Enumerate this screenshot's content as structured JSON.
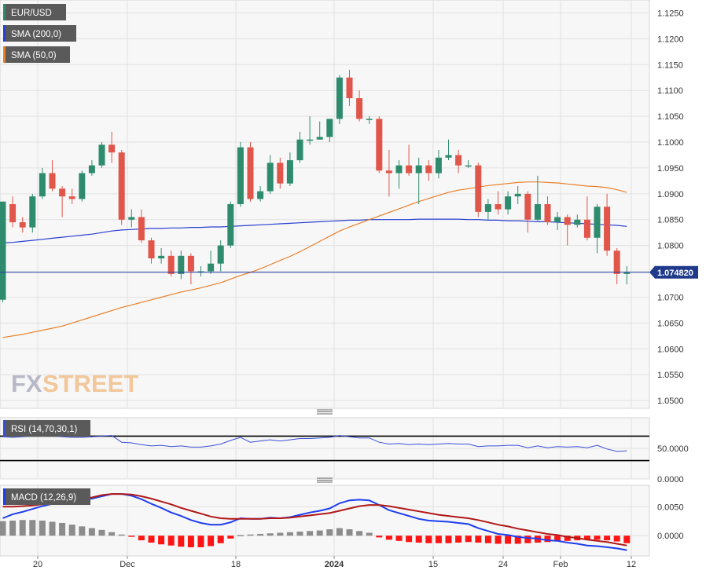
{
  "legend": {
    "symbol": "EUR/USD",
    "sma200": "SMA (200,0)",
    "sma50": "SMA (50,0)",
    "rsi": "RSI (14,70,30,1)",
    "macd": "MACD (12,26,9)"
  },
  "watermark": {
    "fx": "FX",
    "street": "STREET"
  },
  "price_badge": "1.074820",
  "colors": {
    "up": "#2e8b6e",
    "down": "#e0564a",
    "sma200": "#2a3fd0",
    "sma50": "#e8802a",
    "rsi_line": "#3a4fd8",
    "macd_line": "#1e3ef0",
    "signal_line": "#b01818",
    "hist_pos": "#8c8c8c",
    "hist_neg": "#ff1414",
    "badge_bg": "#1f3a8a",
    "legend_bg": "#5a5a5a"
  },
  "chart_data": [
    {
      "type": "candlestick",
      "title": "EUR/USD",
      "x_ticks": [
        "20",
        "Dec",
        "18",
        "2024",
        "15",
        "24",
        "Feb",
        "12"
      ],
      "y_ticks": [
        "1.1250",
        "1.1200",
        "1.1150",
        "1.1100",
        "1.1050",
        "1.1000",
        "1.0950",
        "1.0900",
        "1.0850",
        "1.0800",
        "1.0750",
        "1.0700",
        "1.0650",
        "1.0600",
        "1.0550",
        "1.0500"
      ],
      "ylim": [
        1.0485,
        1.1275
      ],
      "last_price": 1.07482,
      "candles": [
        [
          1.0695,
          1.0885,
          1.069,
          1.0885
        ],
        [
          1.088,
          1.0845,
          1.0895,
          1.0835
        ],
        [
          1.0845,
          1.0835,
          1.0855,
          1.0825
        ],
        [
          1.0835,
          1.0895,
          1.09,
          1.0825
        ],
        [
          1.0895,
          1.094,
          1.095,
          1.089
        ],
        [
          1.094,
          1.091,
          1.0965,
          1.0905
        ],
        [
          1.091,
          1.0895,
          1.0915,
          1.0855
        ],
        [
          1.0895,
          1.089,
          1.091,
          1.088
        ],
        [
          1.089,
          1.094,
          1.0945,
          1.0885
        ],
        [
          1.094,
          1.0955,
          1.0965,
          1.0935
        ],
        [
          1.0955,
          1.0995,
          1.1,
          1.095
        ],
        [
          1.0995,
          1.098,
          1.102,
          1.096
        ],
        [
          1.098,
          1.085,
          1.0985,
          1.084
        ],
        [
          1.085,
          1.0855,
          1.087,
          1.0835
        ],
        [
          1.0855,
          1.081,
          1.087,
          1.0805
        ],
        [
          1.081,
          1.0775,
          1.0815,
          1.0765
        ],
        [
          1.0775,
          1.078,
          1.0795,
          1.0765
        ],
        [
          1.078,
          1.0745,
          1.079,
          1.074
        ],
        [
          1.0745,
          1.078,
          1.079,
          1.0735
        ],
        [
          1.078,
          1.075,
          1.0785,
          1.0725
        ],
        [
          1.075,
          1.075,
          1.076,
          1.074
        ],
        [
          1.075,
          1.0765,
          1.079,
          1.0745
        ],
        [
          1.0765,
          1.08,
          1.081,
          1.075
        ],
        [
          1.08,
          1.088,
          1.0885,
          1.0795
        ],
        [
          1.088,
          1.099,
          1.1,
          1.0875
        ],
        [
          1.099,
          1.089,
          1.1,
          1.0885
        ],
        [
          1.089,
          1.0905,
          1.0915,
          1.0885
        ],
        [
          1.0905,
          1.096,
          1.0975,
          1.09
        ],
        [
          1.096,
          1.092,
          1.097,
          1.091
        ],
        [
          1.092,
          1.0965,
          1.098,
          1.0915
        ],
        [
          1.0965,
          1.1005,
          1.102,
          1.096
        ],
        [
          1.1005,
          1.1005,
          1.105,
          1.0995
        ],
        [
          1.1005,
          1.101,
          1.104,
          1.1005
        ],
        [
          1.101,
          1.1045,
          1.1045,
          1.1
        ],
        [
          1.1045,
          1.1125,
          1.113,
          1.1035
        ],
        [
          1.1125,
          1.1085,
          1.114,
          1.107
        ],
        [
          1.1085,
          1.1045,
          1.11,
          1.104
        ],
        [
          1.1045,
          1.1045,
          1.105,
          1.1035
        ],
        [
          1.1045,
          1.0945,
          1.105,
          1.094
        ],
        [
          1.0945,
          1.094,
          1.0985,
          1.0895
        ],
        [
          1.094,
          1.0955,
          1.0965,
          1.091
        ],
        [
          1.0955,
          1.094,
          1.0995,
          1.0935
        ],
        [
          1.094,
          1.0955,
          1.097,
          1.088
        ],
        [
          1.0955,
          1.094,
          1.0965,
          1.0925
        ],
        [
          1.094,
          1.097,
          1.0985,
          1.093
        ],
        [
          1.097,
          1.0975,
          1.1005,
          1.0965
        ],
        [
          1.0975,
          1.0955,
          1.0985,
          1.094
        ],
        [
          1.0955,
          1.0955,
          1.0965,
          1.095
        ],
        [
          1.0955,
          1.0865,
          1.096,
          1.0855
        ],
        [
          1.0865,
          1.088,
          1.089,
          1.085
        ],
        [
          1.088,
          1.087,
          1.0905,
          1.086
        ],
        [
          1.087,
          1.0895,
          1.0905,
          1.086
        ],
        [
          1.0895,
          1.09,
          1.0915,
          1.088
        ],
        [
          1.09,
          1.085,
          1.0905,
          1.0825
        ],
        [
          1.085,
          1.088,
          1.0935,
          1.0845
        ],
        [
          1.088,
          1.0845,
          1.0895,
          1.084
        ],
        [
          1.0845,
          1.0855,
          1.0865,
          1.083
        ],
        [
          1.0855,
          1.084,
          1.086,
          1.08
        ],
        [
          1.084,
          1.085,
          1.086,
          1.0835
        ],
        [
          1.085,
          1.0815,
          1.0895,
          1.081
        ],
        [
          1.0815,
          1.0875,
          1.088,
          1.0785
        ],
        [
          1.0875,
          1.079,
          1.09,
          1.078
        ],
        [
          1.079,
          1.0745,
          1.0795,
          1.0725
        ],
        [
          1.0745,
          1.0748,
          1.076,
          1.0725
        ]
      ],
      "series": [
        {
          "name": "SMA (200,0)",
          "values": [
            1.0805,
            1.0806,
            1.0808,
            1.081,
            1.0812,
            1.0814,
            1.0816,
            1.0818,
            1.082,
            1.0822,
            1.0825,
            1.0828,
            1.083,
            1.0831,
            1.0832,
            1.0833,
            1.0833,
            1.0834,
            1.0834,
            1.0835,
            1.0835,
            1.0836,
            1.0836,
            1.0837,
            1.0838,
            1.0839,
            1.084,
            1.0841,
            1.0842,
            1.0843,
            1.0844,
            1.0845,
            1.0846,
            1.0847,
            1.0848,
            1.0849,
            1.0849,
            1.085,
            1.085,
            1.085,
            1.085,
            1.085,
            1.0851,
            1.0851,
            1.0851,
            1.0851,
            1.0851,
            1.085,
            1.085,
            1.0849,
            1.0849,
            1.0848,
            1.0848,
            1.0847,
            1.0846,
            1.0846,
            1.0845,
            1.0844,
            1.0843,
            1.0842,
            1.0841,
            1.084,
            1.0839,
            1.0837
          ]
        },
        {
          "name": "SMA (50,0)",
          "values": [
            1.0622,
            1.0625,
            1.0628,
            1.0632,
            1.0636,
            1.064,
            1.0644,
            1.065,
            1.0656,
            1.0662,
            1.0668,
            1.0674,
            1.068,
            1.0685,
            1.069,
            1.0695,
            1.07,
            1.0705,
            1.071,
            1.0714,
            1.0718,
            1.0723,
            1.0728,
            1.0735,
            1.0742,
            1.0748,
            1.0755,
            1.0763,
            1.0771,
            1.0779,
            1.0788,
            1.0798,
            1.0808,
            1.0818,
            1.0828,
            1.0836,
            1.0843,
            1.085,
            1.0857,
            1.0864,
            1.0871,
            1.0878,
            1.0885,
            1.0891,
            1.0897,
            1.0903,
            1.0907,
            1.091,
            1.0913,
            1.0916,
            1.0918,
            1.092,
            1.0922,
            1.0923,
            1.0923,
            1.0922,
            1.0921,
            1.0919,
            1.0917,
            1.0915,
            1.0914,
            1.0912,
            1.0908,
            1.0903
          ]
        }
      ]
    },
    {
      "type": "line",
      "title": "RSI (14,70,30,1)",
      "y_ticks": [
        "50.0000",
        "0.0000"
      ],
      "levels": [
        70,
        30
      ],
      "ylim": [
        0,
        100
      ],
      "series": [
        {
          "name": "RSI (14,70,30,1)",
          "values": [
            69,
            68,
            69,
            70,
            71,
            70,
            69,
            68,
            68,
            69,
            70,
            71,
            60,
            59,
            56,
            54,
            55,
            53,
            54,
            52,
            52,
            54,
            57,
            63,
            68,
            60,
            62,
            64,
            62,
            64,
            66,
            66,
            67,
            68,
            71,
            69,
            67,
            67,
            60,
            57,
            58,
            56,
            57,
            56,
            57,
            58,
            57,
            57,
            53,
            54,
            54,
            55,
            55,
            51,
            54,
            51,
            53,
            52,
            53,
            51,
            55,
            49,
            45,
            46
          ]
        }
      ]
    },
    {
      "type": "line",
      "title": "MACD (12,26,9)",
      "y_ticks": [
        "0.0050",
        "0.0000"
      ],
      "ylim": [
        -0.0035,
        0.0087
      ],
      "series": [
        {
          "name": "MACD",
          "values": [
            0.003,
            0.0037,
            0.0041,
            0.0046,
            0.0051,
            0.0055,
            0.0058,
            0.006,
            0.0062,
            0.0064,
            0.0068,
            0.0072,
            0.0072,
            0.0069,
            0.0063,
            0.0055,
            0.0048,
            0.004,
            0.0034,
            0.0027,
            0.0022,
            0.0019,
            0.0019,
            0.0023,
            0.003,
            0.0029,
            0.0029,
            0.0031,
            0.003,
            0.0032,
            0.0036,
            0.004,
            0.0043,
            0.0047,
            0.0056,
            0.0061,
            0.0062,
            0.0061,
            0.0053,
            0.0044,
            0.0039,
            0.0034,
            0.0029,
            0.0026,
            0.0025,
            0.0024,
            0.0022,
            0.002,
            0.0013,
            0.0008,
            0.0003,
            0.0001,
            -0.0002,
            -0.0004,
            -0.0005,
            -0.0008,
            -0.0009,
            -0.0012,
            -0.0014,
            -0.0017,
            -0.0018,
            -0.002,
            -0.0022,
            -0.0025
          ]
        },
        {
          "name": "Signal",
          "values": [
            0.005,
            0.005,
            0.0051,
            0.0052,
            0.0054,
            0.0056,
            0.0058,
            0.006,
            0.0063,
            0.0066,
            0.007,
            0.0072,
            0.0072,
            0.0071,
            0.0068,
            0.0064,
            0.0059,
            0.0054,
            0.0048,
            0.0043,
            0.0038,
            0.0033,
            0.003,
            0.0029,
            0.0029,
            0.0029,
            0.0029,
            0.003,
            0.003,
            0.0031,
            0.0033,
            0.0035,
            0.0037,
            0.0039,
            0.0043,
            0.0047,
            0.0051,
            0.0053,
            0.0053,
            0.0051,
            0.0048,
            0.0045,
            0.0042,
            0.0039,
            0.0036,
            0.0034,
            0.0032,
            0.003,
            0.0027,
            0.0023,
            0.0019,
            0.0016,
            0.0012,
            0.0009,
            0.0006,
            0.0003,
            0.0001,
            -0.0002,
            -0.0004,
            -0.0007,
            -0.0009,
            -0.0011,
            -0.0014,
            -0.0017
          ]
        },
        {
          "name": "Histogram",
          "values": [
            0.0025,
            0.0026,
            0.0027,
            0.0027,
            0.0026,
            0.0024,
            0.0022,
            0.0019,
            0.0016,
            0.0013,
            0.001,
            0.0006,
            0.0002,
            -0.0002,
            -0.0008,
            -0.0012,
            -0.0015,
            -0.0017,
            -0.0019,
            -0.002,
            -0.002,
            -0.0018,
            -0.0013,
            -0.0005,
            0.0001,
            0.0002,
            0.0003,
            0.0004,
            0.0005,
            0.0006,
            0.0007,
            0.0008,
            0.0009,
            0.0011,
            0.0013,
            0.0011,
            0.0008,
            0.0005,
            -0.0003,
            -0.0007,
            -0.0009,
            -0.0011,
            -0.0012,
            -0.0013,
            -0.0013,
            -0.0013,
            -0.0012,
            -0.0011,
            -0.0012,
            -0.0013,
            -0.0014,
            -0.0014,
            -0.0014,
            -0.0013,
            -0.0012,
            -0.0011,
            -0.001,
            -0.0009,
            -0.0008,
            -0.0007,
            -0.0007,
            -0.0008,
            -0.001,
            -0.0013
          ]
        }
      ]
    }
  ]
}
